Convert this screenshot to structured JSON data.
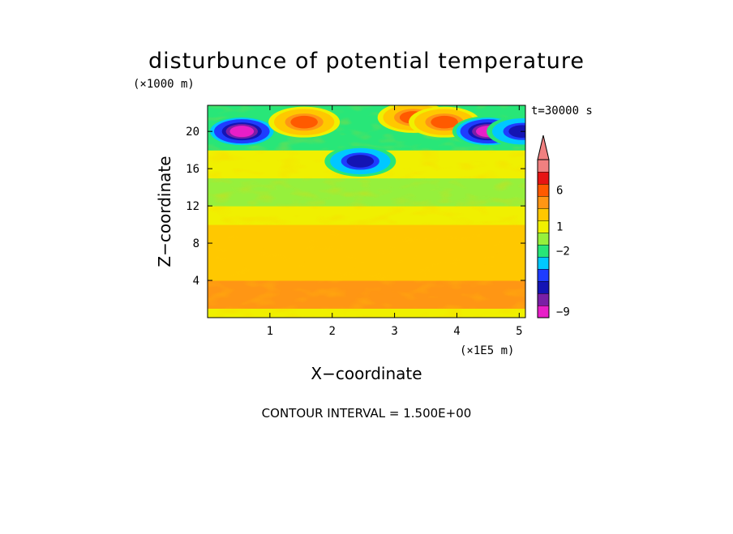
{
  "chart_data": {
    "type": "heatmap",
    "title": "disturbunce of potential temperature",
    "xlabel": "X−coordinate",
    "ylabel": "Z−coordinate",
    "x_unit": "(×1E5 m)",
    "y_unit": "(×1000 m)",
    "time_label": "t=30000 s",
    "contour_interval": "CONTOUR INTERVAL = 1.500E+00",
    "xlim": [
      0,
      5.1
    ],
    "ylim": [
      0,
      22.8
    ],
    "x_ticks": [
      "1",
      "2",
      "3",
      "4",
      "5"
    ],
    "x_tick_values": [
      1,
      2,
      3,
      4,
      5
    ],
    "y_ticks": [
      "4",
      "8",
      "12",
      "16",
      "20"
    ],
    "y_tick_values": [
      4,
      8,
      12,
      16,
      20
    ],
    "colorbar": {
      "colors_bottom_to_top": [
        "#e81ec8",
        "#7a1fa6",
        "#1414b4",
        "#1e3cff",
        "#00c8ff",
        "#28e678",
        "#96f03c",
        "#f0f000",
        "#ffc800",
        "#ff9614",
        "#ff5a00",
        "#e61414",
        "#f08080"
      ],
      "labels": [
        "-9",
        "-2",
        "1",
        "6"
      ],
      "label_texts": [
        "−9",
        "−2",
        "1",
        "6"
      ]
    },
    "field_regions": [
      {
        "band": "0-1 km",
        "x": [
          0,
          5.1
        ],
        "value": 1.5
      },
      {
        "band": "1-4 km",
        "x": [
          0,
          5.1
        ],
        "value": 4.0
      },
      {
        "band": "4-10 km",
        "x": [
          0,
          5.1
        ],
        "value": 3.0
      },
      {
        "band": "10-12 km",
        "x": [
          0,
          5.1
        ],
        "value": 1.5
      },
      {
        "band": "12-15 km",
        "x": [
          0,
          5.1
        ],
        "value": 0.0
      },
      {
        "band": "15-18 km",
        "x": [
          0,
          5.1
        ],
        "value": 1.5
      },
      {
        "band": "18-23 km",
        "x": [
          0,
          5.1
        ],
        "value": -1.0
      }
    ],
    "features": [
      {
        "x": 0.55,
        "z": 20.0,
        "value": -9
      },
      {
        "x": 1.55,
        "z": 21.0,
        "value": 6
      },
      {
        "x": 2.45,
        "z": 16.8,
        "value": -6
      },
      {
        "x": 3.3,
        "z": 21.5,
        "value": 6
      },
      {
        "x": 3.8,
        "z": 21.0,
        "value": 6
      },
      {
        "x": 4.5,
        "z": 20.0,
        "value": -9
      },
      {
        "x": 5.05,
        "z": 20.0,
        "value": -6
      }
    ]
  }
}
